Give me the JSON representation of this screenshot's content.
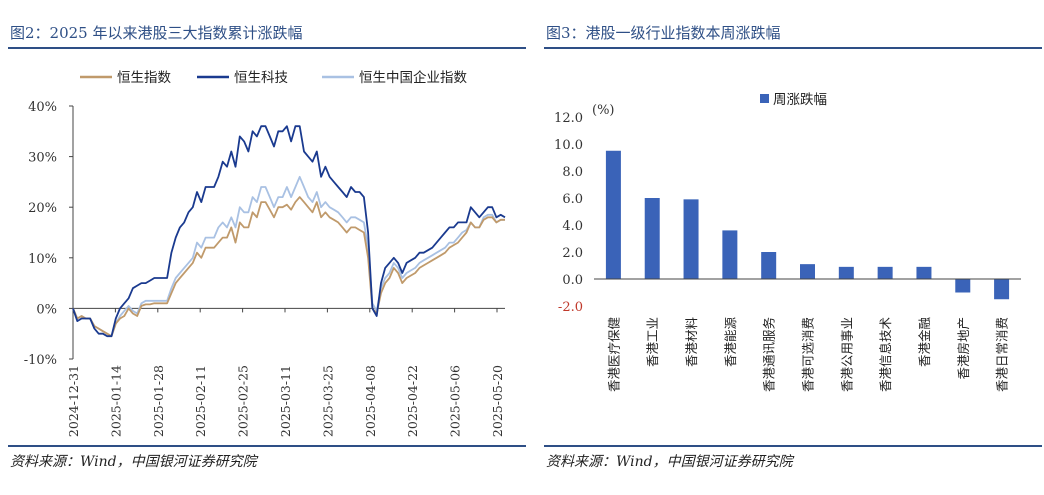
{
  "left": {
    "title": "图2：2025 年以来港股三大指数累计涨跌幅",
    "source": "资料来源：Wind，中国银河证券研究院",
    "chart_data": {
      "type": "line",
      "ylim": [
        -10,
        40
      ],
      "yticks": [
        -10,
        0,
        10,
        20,
        30,
        40
      ],
      "ytick_labels": [
        "-10%",
        "0%",
        "10%",
        "20%",
        "30%",
        "40%"
      ],
      "xtick_labels": [
        "2024-12-31",
        "2025-01-14",
        "2025-01-28",
        "2025-02-11",
        "2025-02-25",
        "2025-03-11",
        "2025-03-25",
        "2025-04-08",
        "2025-04-22",
        "2025-05-06",
        "2025-05-20"
      ],
      "legend_position": "top",
      "series": [
        {
          "name": "恒生指数",
          "color": "#c09a6b",
          "values": [
            0,
            -2,
            -1.5,
            -2,
            -2,
            -3.5,
            -4,
            -4.5,
            -5,
            -5.5,
            -3,
            -2,
            -1.5,
            0,
            -1,
            -1.5,
            0.5,
            0.8,
            0.8,
            1,
            1,
            1,
            1,
            3,
            5,
            6,
            7,
            8,
            9,
            11,
            10,
            12,
            12,
            12,
            13,
            14,
            14,
            16,
            13,
            17,
            16,
            16,
            19,
            18,
            21,
            21,
            19.5,
            18,
            20,
            20,
            20.5,
            19.5,
            21,
            22,
            21,
            20,
            19,
            21,
            18,
            19,
            18,
            17.5,
            17,
            16,
            15,
            16,
            16,
            15.5,
            15,
            10,
            0,
            -1,
            3,
            5,
            6,
            8,
            7,
            5,
            6,
            6.5,
            7,
            8,
            8.5,
            9,
            9.5,
            10,
            10.5,
            11,
            12,
            12.5,
            13,
            14,
            15,
            17,
            16,
            16,
            17.5,
            18,
            18,
            17,
            17.5,
            17.5
          ]
        },
        {
          "name": "恒生科技",
          "color": "#1a3a8f",
          "values": [
            0,
            -2.5,
            -2,
            -2,
            -2,
            -4,
            -5,
            -5,
            -5.5,
            -5.5,
            -2,
            0,
            1,
            2,
            4,
            4.5,
            5,
            5,
            5.5,
            6,
            6,
            6,
            6,
            11,
            14,
            16,
            17,
            19,
            20,
            23,
            21,
            24,
            24,
            24,
            26,
            29,
            28,
            31,
            28,
            34,
            33,
            31,
            35,
            34,
            36,
            36,
            34,
            32,
            35,
            35,
            36,
            33,
            36,
            36,
            31,
            30,
            29,
            31,
            26,
            28,
            26,
            25,
            24,
            23,
            22,
            24,
            23,
            23,
            22,
            15,
            0,
            -1.5,
            5,
            8,
            9,
            10,
            9,
            7,
            9,
            9.5,
            10,
            11,
            11,
            11.5,
            12,
            13,
            14,
            15,
            16,
            16,
            17,
            17,
            17,
            20,
            19,
            18,
            19,
            20,
            20,
            18,
            18.5,
            18
          ]
        },
        {
          "name": "恒生中国企业指数",
          "color": "#a9c1e3",
          "values": [
            0,
            -2,
            -1.5,
            -2,
            -2,
            -3.5,
            -4,
            -4.5,
            -5,
            -5.5,
            -3,
            -1.5,
            -0.5,
            0.5,
            -0.5,
            -1,
            1,
            1.5,
            1.5,
            1.5,
            1.5,
            1.5,
            1.5,
            4,
            6,
            7,
            8,
            9,
            10,
            13,
            12,
            14,
            14,
            14,
            16,
            17,
            16,
            18,
            16,
            20,
            19,
            19,
            22,
            21,
            24,
            24,
            22,
            20,
            22,
            22,
            24,
            22,
            24,
            26,
            24,
            22,
            21,
            23,
            20,
            21,
            20,
            19.5,
            19,
            18,
            17,
            18,
            18,
            17.5,
            17,
            12,
            1,
            -0.5,
            4,
            6,
            7,
            9,
            8,
            6,
            7,
            7.5,
            8,
            9,
            9.5,
            10,
            10.5,
            11,
            11.5,
            12,
            13,
            13,
            14,
            15,
            15.5,
            17,
            16,
            16,
            18,
            18.5,
            18.5,
            17,
            17.5,
            17.5
          ]
        }
      ]
    }
  },
  "right": {
    "title": "图3：港股一级行业指数本周涨跌幅",
    "source": "资料来源：Wind，中国银河证券研究院",
    "chart_data": {
      "type": "bar",
      "unit_label": "(%)",
      "ylim": [
        -2,
        12
      ],
      "yticks": [
        -2,
        0,
        2,
        4,
        6,
        8,
        10,
        12
      ],
      "ytick_labels": [
        "-2.0",
        "0.0",
        "2.0",
        "4.0",
        "6.0",
        "8.0",
        "10.0",
        "12.0"
      ],
      "legend_position": "top",
      "categories": [
        "香港医疗保健",
        "香港工业",
        "香港材料",
        "香港能源",
        "香港通讯服务",
        "香港可选消费",
        "香港公用事业",
        "香港信息技术",
        "香港金融",
        "香港房地产",
        "香港日常消费"
      ],
      "series": [
        {
          "name": "周涨跌幅",
          "color": "#3a63b8",
          "values": [
            9.5,
            6.0,
            5.9,
            3.6,
            2.0,
            1.1,
            0.9,
            0.9,
            0.9,
            -1.0,
            -1.5
          ]
        }
      ]
    }
  }
}
